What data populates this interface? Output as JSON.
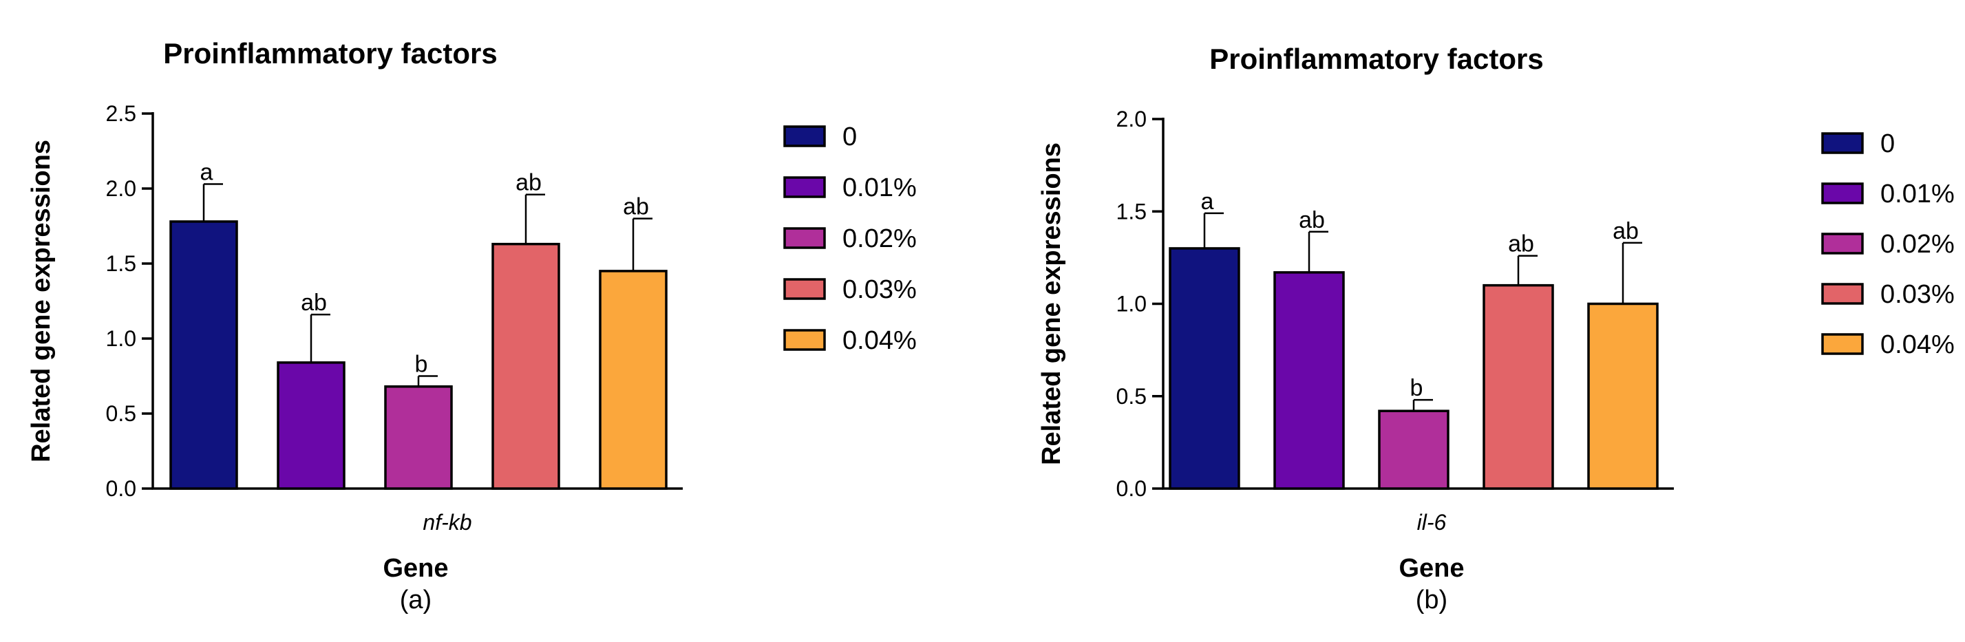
{
  "chart_data": [
    {
      "type": "bar",
      "title": "Proinflammatory factors",
      "xlabel": "Gene",
      "ylabel": "Related gene expressions",
      "category": "nf-kb",
      "panel_label": "(a)",
      "ylim": [
        0,
        2.5
      ],
      "yticks": [
        "0.0",
        "0.5",
        "1.0",
        "1.5",
        "2.0",
        "2.5"
      ],
      "grid": false,
      "legend_position": "right",
      "series": [
        {
          "name": "0",
          "value": 1.78,
          "error": 0.25,
          "significance": "a",
          "color": "#10137f"
        },
        {
          "name": "0.01%",
          "value": 0.84,
          "error": 0.32,
          "significance": "ab",
          "color": "#6a07a9"
        },
        {
          "name": "0.02%",
          "value": 0.68,
          "error": 0.07,
          "significance": "b",
          "color": "#b02f9a"
        },
        {
          "name": "0.03%",
          "value": 1.63,
          "error": 0.33,
          "significance": "ab",
          "color": "#e26468"
        },
        {
          "name": "0.04%",
          "value": 1.45,
          "error": 0.35,
          "significance": "ab",
          "color": "#fba73c"
        }
      ]
    },
    {
      "type": "bar",
      "title": "Proinflammatory factors",
      "xlabel": "Gene",
      "ylabel": "Related gene expressions",
      "category": "il-6",
      "panel_label": "(b)",
      "ylim": [
        0,
        2.0
      ],
      "yticks": [
        "0.0",
        "0.5",
        "1.0",
        "1.5",
        "2.0"
      ],
      "grid": false,
      "legend_position": "right",
      "series": [
        {
          "name": "0",
          "value": 1.3,
          "error": 0.19,
          "significance": "a",
          "color": "#10137f"
        },
        {
          "name": "0.01%",
          "value": 1.17,
          "error": 0.22,
          "significance": "ab",
          "color": "#6a07a9"
        },
        {
          "name": "0.02%",
          "value": 0.42,
          "error": 0.06,
          "significance": "b",
          "color": "#b02f9a"
        },
        {
          "name": "0.03%",
          "value": 1.1,
          "error": 0.16,
          "significance": "ab",
          "color": "#e26468"
        },
        {
          "name": "0.04%",
          "value": 1.0,
          "error": 0.33,
          "significance": "ab",
          "color": "#fba73c"
        }
      ]
    }
  ]
}
